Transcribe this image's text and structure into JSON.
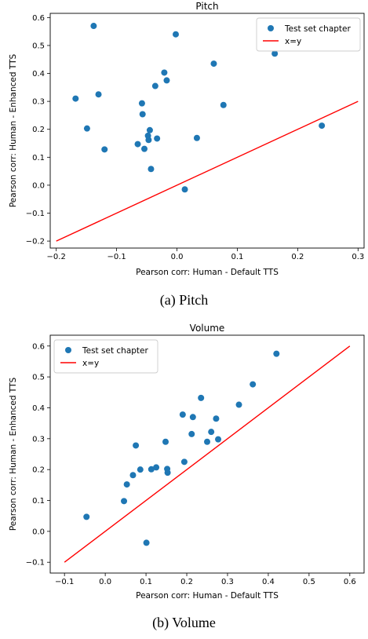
{
  "chart_data": [
    {
      "type": "scatter",
      "title": "Pitch",
      "xlabel": "Pearson corr: Human - Default TTS",
      "ylabel": "Pearson corr: Human - Enhanced TTS",
      "xlim": [
        -0.21,
        0.31
      ],
      "ylim": [
        -0.225,
        0.615
      ],
      "xticks": [
        -0.2,
        -0.1,
        0.0,
        0.1,
        0.2,
        0.3
      ],
      "xtick_labels": [
        "−0.2",
        "−0.1",
        "0.0",
        "0.1",
        "0.2",
        "0.3"
      ],
      "yticks": [
        -0.2,
        -0.1,
        0.0,
        0.1,
        0.2,
        0.3,
        0.4,
        0.5,
        0.6
      ],
      "ytick_labels": [
        "−0.2",
        "−0.1",
        "0.0",
        "0.1",
        "0.2",
        "0.3",
        "0.4",
        "0.5",
        "0.6"
      ],
      "series": [
        {
          "name": "Test set chapter",
          "marker": "dot",
          "color": "#1f77b4",
          "points": [
            [
              -0.138,
              0.57
            ],
            [
              -0.168,
              0.31
            ],
            [
              -0.13,
              0.325
            ],
            [
              -0.149,
              0.203
            ],
            [
              -0.12,
              0.128
            ],
            [
              -0.058,
              0.293
            ],
            [
              -0.057,
              0.254
            ],
            [
              -0.036,
              0.355
            ],
            [
              -0.045,
              0.197
            ],
            [
              -0.048,
              0.177
            ],
            [
              -0.047,
              0.162
            ],
            [
              -0.033,
              0.167
            ],
            [
              -0.065,
              0.147
            ],
            [
              -0.054,
              0.13
            ],
            [
              -0.043,
              0.058
            ],
            [
              -0.021,
              0.403
            ],
            [
              -0.017,
              0.375
            ],
            [
              -0.002,
              0.54
            ],
            [
              0.061,
              0.435
            ],
            [
              0.033,
              0.169
            ],
            [
              0.077,
              0.287
            ],
            [
              0.013,
              -0.015
            ],
            [
              0.162,
              0.471
            ],
            [
              0.24,
              0.213
            ]
          ]
        },
        {
          "name": "x=y",
          "marker": "line",
          "color": "#ff0000",
          "points": [
            [
              -0.2,
              -0.2
            ],
            [
              0.3,
              0.3
            ]
          ]
        }
      ],
      "legend": "top-right",
      "grid": false,
      "caption": "(a) Pitch"
    },
    {
      "type": "scatter",
      "title": "Volume",
      "xlabel": "Pearson corr: Human - Default TTS",
      "ylabel": "Pearson corr: Human - Enhanced TTS",
      "xlim": [
        -0.135,
        0.635
      ],
      "ylim": [
        -0.135,
        0.635
      ],
      "xticks": [
        -0.1,
        0.0,
        0.1,
        0.2,
        0.3,
        0.4,
        0.5,
        0.6
      ],
      "xtick_labels": [
        "−0.1",
        "0.0",
        "0.1",
        "0.2",
        "0.3",
        "0.4",
        "0.5",
        "0.6"
      ],
      "yticks": [
        -0.1,
        0.0,
        0.1,
        0.2,
        0.3,
        0.4,
        0.5,
        0.6
      ],
      "ytick_labels": [
        "−0.1",
        "0.0",
        "0.1",
        "0.2",
        "0.3",
        "0.4",
        "0.5",
        "0.6"
      ],
      "series": [
        {
          "name": "Test set chapter",
          "marker": "dot",
          "color": "#1f77b4",
          "points": [
            [
              -0.046,
              0.047
            ],
            [
              0.046,
              0.098
            ],
            [
              0.053,
              0.152
            ],
            [
              0.068,
              0.182
            ],
            [
              0.075,
              0.278
            ],
            [
              0.086,
              0.2
            ],
            [
              0.113,
              0.201
            ],
            [
              0.125,
              0.207
            ],
            [
              0.148,
              0.29
            ],
            [
              0.152,
              0.202
            ],
            [
              0.153,
              0.19
            ],
            [
              0.101,
              -0.037
            ],
            [
              0.19,
              0.378
            ],
            [
              0.194,
              0.225
            ],
            [
              0.212,
              0.315
            ],
            [
              0.215,
              0.37
            ],
            [
              0.235,
              0.432
            ],
            [
              0.25,
              0.29
            ],
            [
              0.26,
              0.322
            ],
            [
              0.272,
              0.365
            ],
            [
              0.277,
              0.298
            ],
            [
              0.328,
              0.41
            ],
            [
              0.362,
              0.476
            ],
            [
              0.42,
              0.575
            ]
          ]
        },
        {
          "name": "x=y",
          "marker": "line",
          "color": "#ff0000",
          "points": [
            [
              -0.1,
              -0.1
            ],
            [
              0.6,
              0.6
            ]
          ]
        }
      ],
      "legend": "top-left",
      "grid": false,
      "caption": "(b) Volume"
    }
  ]
}
